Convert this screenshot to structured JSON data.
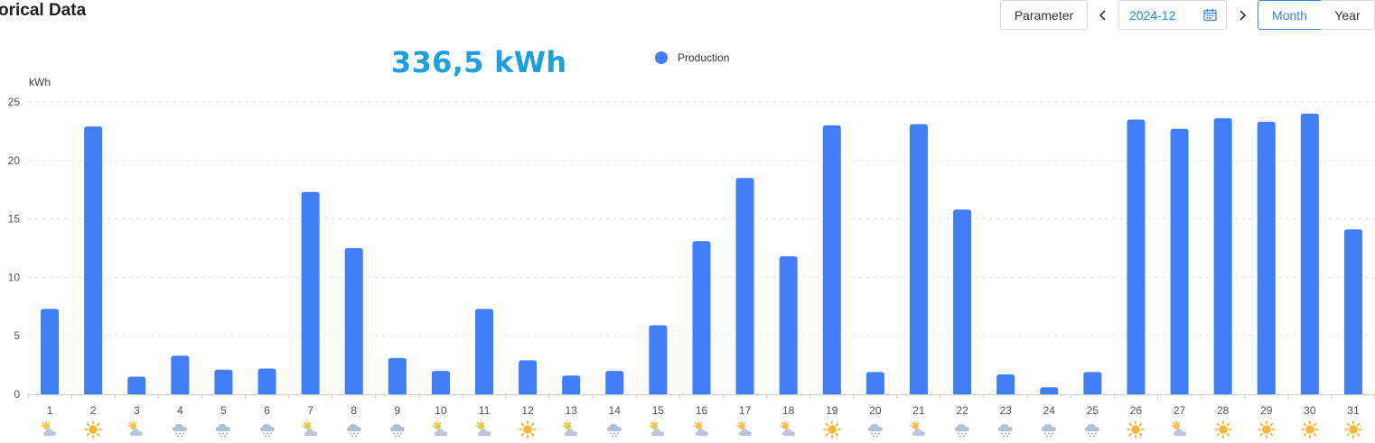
{
  "header": {
    "title": "orical Data",
    "parameter_label": "Parameter",
    "date_value": "2024-12",
    "month_label": "Month",
    "year_label": "Year"
  },
  "summary": {
    "total": "336,5 kWh"
  },
  "chart_data": {
    "type": "bar",
    "ylabel": "kWh",
    "ylim": [
      0,
      25
    ],
    "yticks": [
      0,
      5,
      10,
      15,
      20,
      25
    ],
    "grid": true,
    "legend_position": "top",
    "categories": [
      "1",
      "2",
      "3",
      "4",
      "5",
      "6",
      "7",
      "8",
      "9",
      "10",
      "11",
      "12",
      "13",
      "14",
      "15",
      "16",
      "17",
      "18",
      "19",
      "20",
      "21",
      "22",
      "23",
      "24",
      "25",
      "26",
      "27",
      "28",
      "29",
      "30",
      "31"
    ],
    "series": [
      {
        "name": "Production",
        "color": "#3f7ef5",
        "values": [
          7.3,
          22.9,
          1.5,
          3.3,
          2.1,
          2.2,
          17.3,
          12.5,
          3.1,
          2.0,
          7.3,
          2.9,
          1.6,
          2.0,
          5.9,
          13.1,
          18.5,
          11.8,
          23.0,
          1.9,
          23.1,
          15.8,
          1.7,
          0.6,
          1.9,
          23.5,
          22.7,
          23.6,
          23.3,
          24.0,
          14.1
        ]
      }
    ],
    "weather_icons": [
      "partly-cloudy-icon",
      "sunny-icon",
      "partly-cloudy-icon",
      "snow-icon",
      "snow-icon",
      "snow-icon",
      "partly-cloudy-icon",
      "snow-icon",
      "snow-icon",
      "partly-cloudy-icon",
      "partly-cloudy-icon",
      "sunny-icon",
      "partly-cloudy-icon",
      "snow-icon",
      "partly-cloudy-icon",
      "partly-cloudy-icon",
      "partly-cloudy-icon",
      "partly-cloudy-icon",
      "sunny-icon",
      "snow-icon",
      "partly-cloudy-icon",
      "snow-icon",
      "snow-icon",
      "snow-icon",
      "snow-icon",
      "sunny-icon",
      "partly-cloudy-icon",
      "sunny-icon",
      "sunny-icon",
      "sunny-icon",
      "sunny-icon"
    ]
  }
}
